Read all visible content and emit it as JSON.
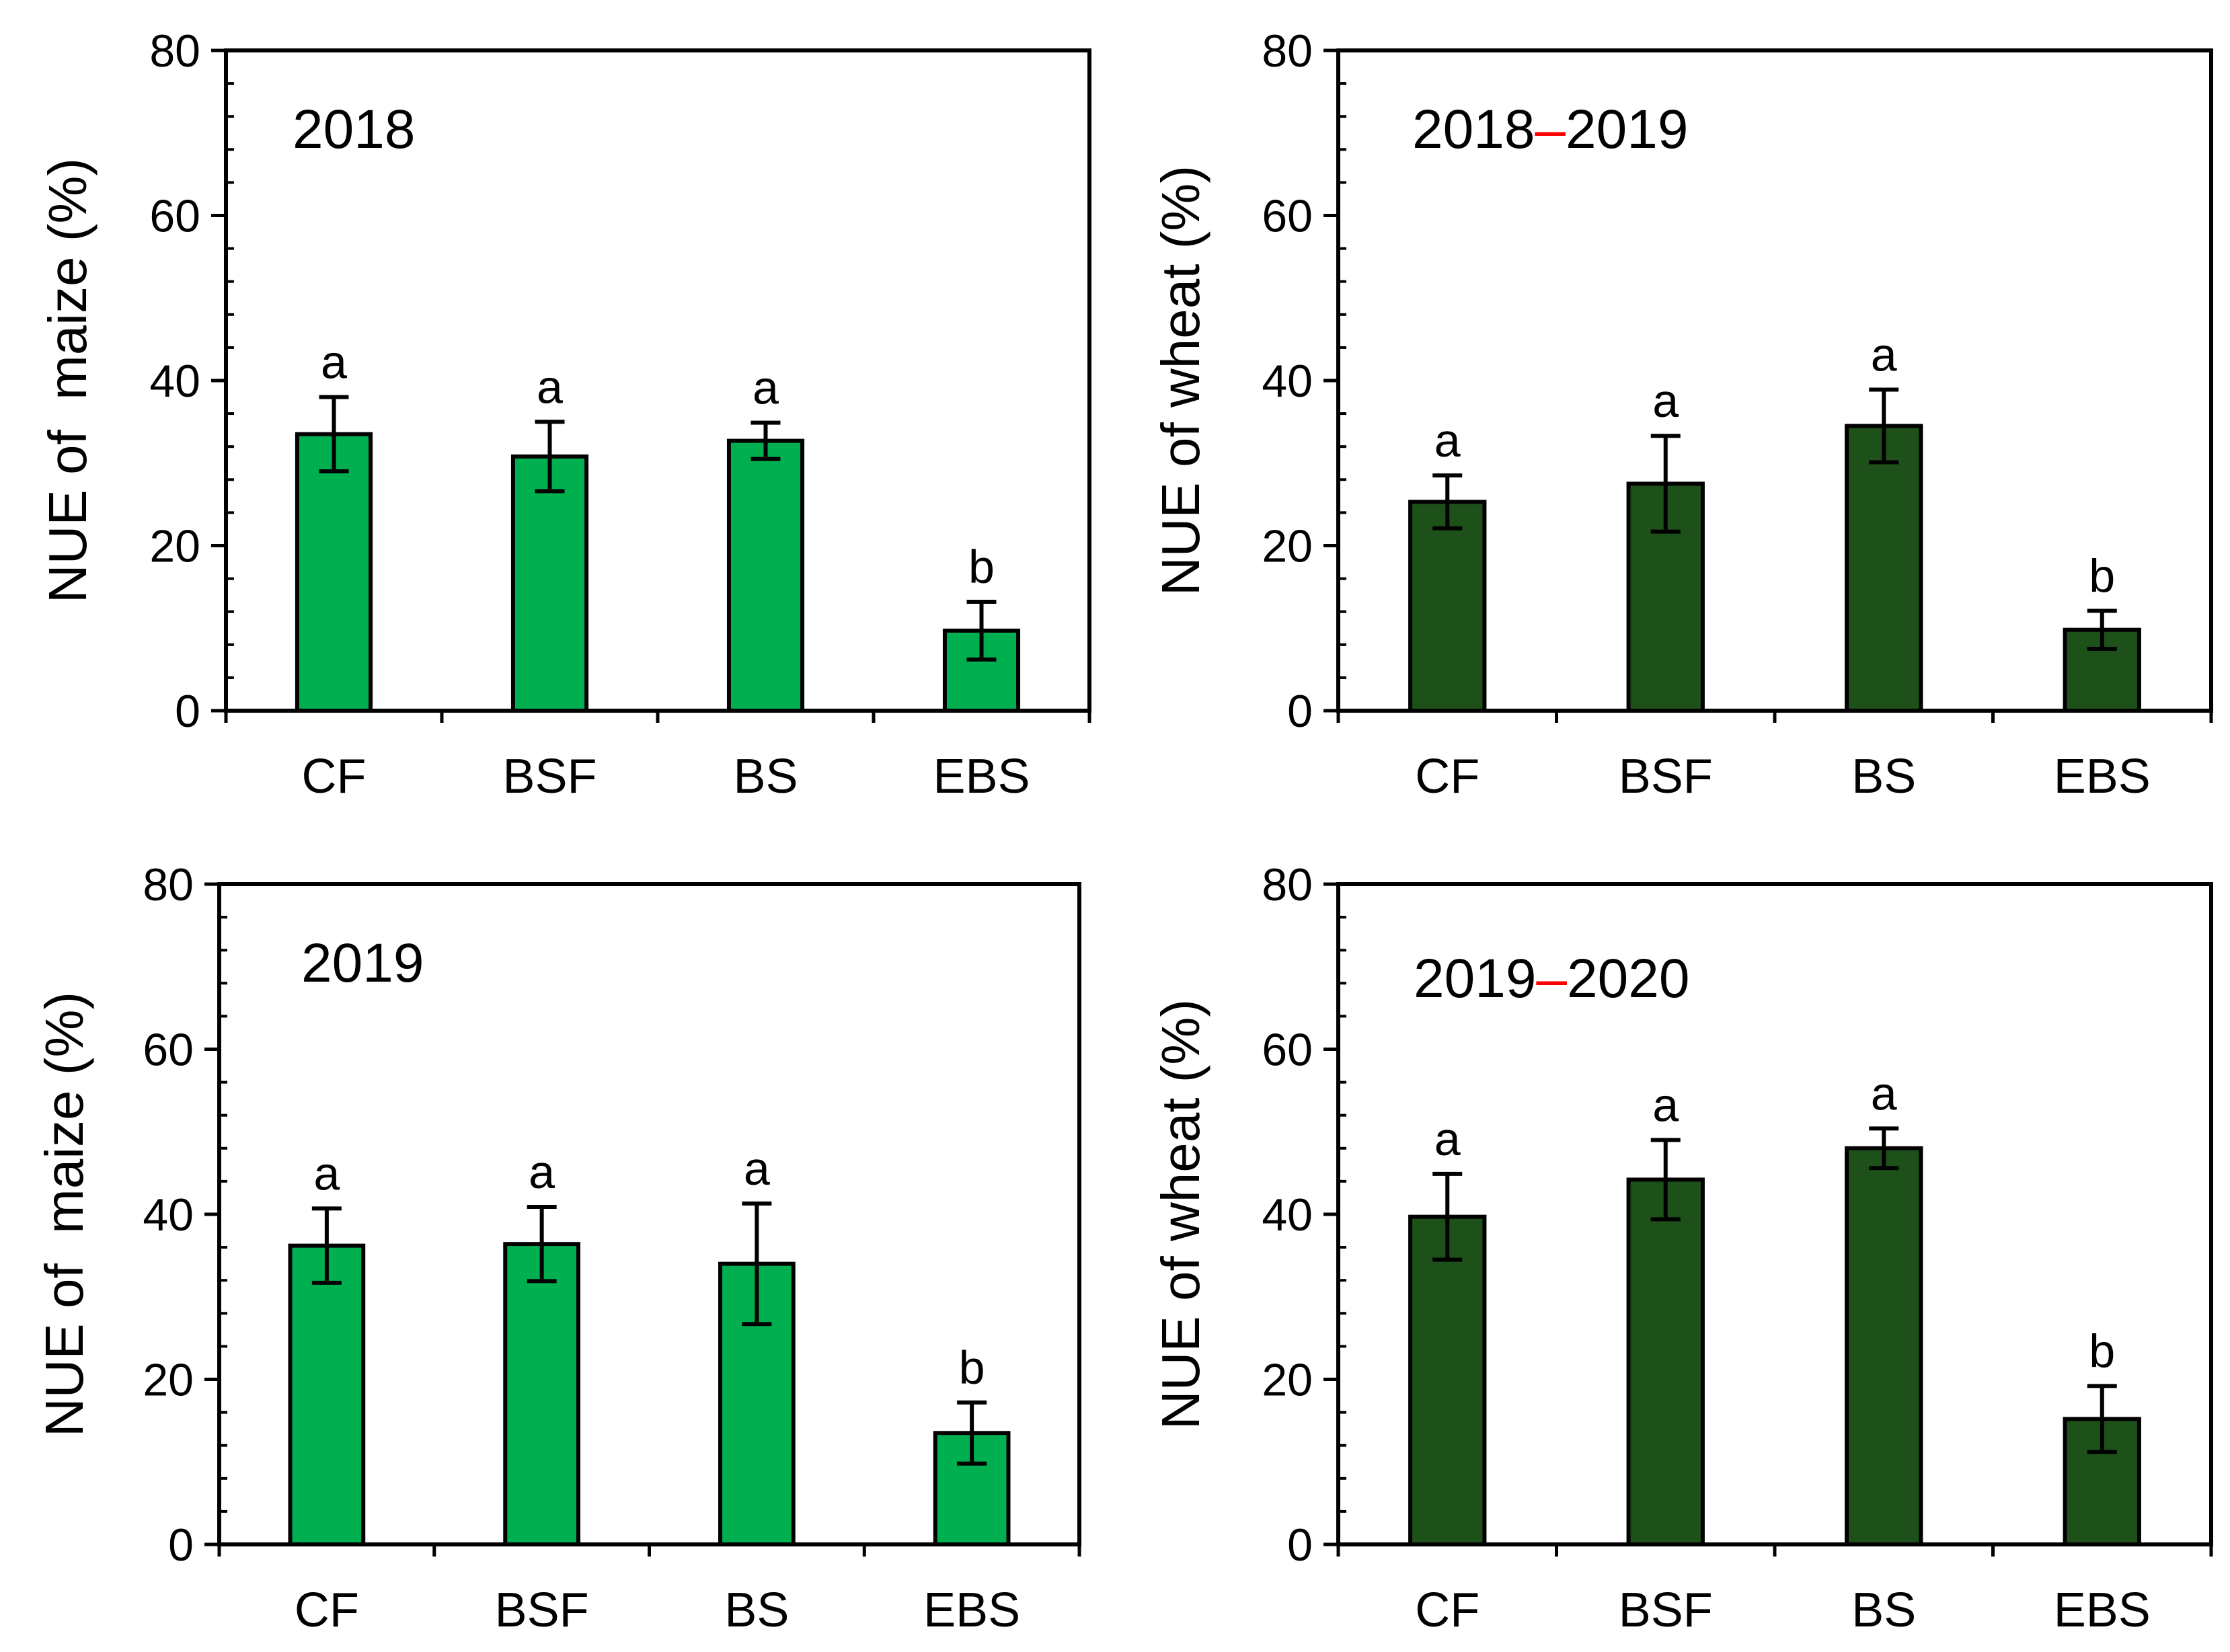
{
  "chart_data": [
    {
      "type": "bar",
      "title": "2018",
      "ylabel": "NUE of  maize (%)",
      "xlabel": "",
      "categories": [
        "CF",
        "BSF",
        "BS",
        "EBS"
      ],
      "values": [
        33.5,
        30.8,
        32.7,
        9.7
      ],
      "errors": [
        4.5,
        4.2,
        2.2,
        3.5
      ],
      "significance": [
        "a",
        "a",
        "a",
        "b"
      ],
      "ylim": [
        0,
        80
      ],
      "yticks": [
        0,
        20,
        40,
        60,
        80
      ],
      "bar_color": "#00b050"
    },
    {
      "type": "bar",
      "title": "2018–2019",
      "title_parts": [
        "2018",
        "–",
        "2019"
      ],
      "ylabel": "NUE of wheat (%)",
      "xlabel": "",
      "categories": [
        "CF",
        "BSF",
        "BS",
        "EBS"
      ],
      "values": [
        25.3,
        27.5,
        34.5,
        9.8
      ],
      "errors": [
        3.2,
        5.8,
        4.4,
        2.3
      ],
      "significance": [
        "a",
        "a",
        "a",
        "b"
      ],
      "ylim": [
        0,
        80
      ],
      "yticks": [
        0,
        20,
        40,
        60,
        80
      ],
      "bar_color": "#1e5119",
      "dash_color": "#ff0000"
    },
    {
      "type": "bar",
      "title": "2019",
      "ylabel": "NUE of  maize (%)",
      "xlabel": "",
      "categories": [
        "CF",
        "BSF",
        "BS",
        "EBS"
      ],
      "values": [
        36.2,
        36.4,
        34.0,
        13.5
      ],
      "errors": [
        4.5,
        4.5,
        7.3,
        3.7
      ],
      "significance": [
        "a",
        "a",
        "a",
        "b"
      ],
      "ylim": [
        0,
        80
      ],
      "yticks": [
        0,
        20,
        40,
        60,
        80
      ],
      "bar_color": "#00b050"
    },
    {
      "type": "bar",
      "title": "2019–2020",
      "title_parts": [
        "2019",
        "–",
        "2020"
      ],
      "ylabel": "NUE of wheat (%)",
      "xlabel": "",
      "categories": [
        "CF",
        "BSF",
        "BS",
        "EBS"
      ],
      "values": [
        39.7,
        44.2,
        48.0,
        15.2
      ],
      "errors": [
        5.2,
        4.8,
        2.4,
        4.0
      ],
      "significance": [
        "a",
        "a",
        "a",
        "b"
      ],
      "ylim": [
        0,
        80
      ],
      "yticks": [
        0,
        20,
        40,
        60,
        80
      ],
      "bar_color": "#1e5119",
      "dash_color": "#ff0000"
    }
  ]
}
